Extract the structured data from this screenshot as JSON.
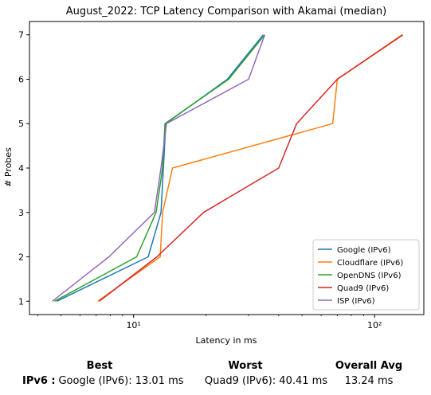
{
  "chart_data": {
    "type": "line",
    "title": "August_2022: TCP Latency Comparison with Akamai (median)",
    "xlabel": "Latency in ms",
    "ylabel": "# Probes",
    "xscale": "log",
    "xlim": [
      3.7,
      160
    ],
    "ylim": [
      0.7,
      7.3
    ],
    "xticks": [
      10,
      100
    ],
    "xtick_labels": [
      "10¹",
      "10²"
    ],
    "yticks": [
      1,
      2,
      3,
      4,
      5,
      6,
      7
    ],
    "grid": false,
    "legend_position": "lower-right",
    "series": [
      {
        "name": "Google (IPv6)",
        "color": "#1f77b4",
        "x": [
          4.8,
          11.5,
          13.0,
          13.3,
          13.6,
          24.5,
          34.5
        ],
        "y": [
          1,
          2,
          3,
          4,
          5,
          6,
          7
        ]
      },
      {
        "name": "Cloudflare (IPv6)",
        "color": "#ff7f0e",
        "x": [
          7.1,
          12.9,
          13.2,
          14.5,
          67.0,
          70.0,
          130.0
        ],
        "y": [
          1,
          2,
          3,
          4,
          5,
          6,
          7
        ]
      },
      {
        "name": "OpenDNS (IPv6)",
        "color": "#2ca02c",
        "x": [
          4.7,
          10.3,
          12.4,
          13.2,
          13.5,
          24.8,
          35.0
        ],
        "y": [
          1,
          2,
          3,
          4,
          5,
          6,
          7
        ]
      },
      {
        "name": "Quad9 (IPv6)",
        "color": "#d62728",
        "x": [
          7.2,
          12.5,
          19.5,
          40.0,
          47.5,
          70.0,
          131.0
        ],
        "y": [
          1,
          2,
          3,
          4,
          5,
          6,
          7
        ]
      },
      {
        "name": "ISP (IPv6)",
        "color": "#9467bd",
        "x": [
          4.6,
          7.9,
          12.2,
          13.0,
          13.7,
          30.0,
          35.0
        ],
        "y": [
          1,
          2,
          3,
          4,
          5,
          6,
          7
        ]
      }
    ]
  },
  "summary": {
    "best_header": "Best",
    "worst_header": "Worst",
    "avg_header": "Overall Avg",
    "row_label": "IPv6 :",
    "best_value": "Google (IPv6): 13.01 ms",
    "worst_value": "Quad9 (IPv6): 40.41 ms",
    "avg_value": "13.24 ms"
  }
}
